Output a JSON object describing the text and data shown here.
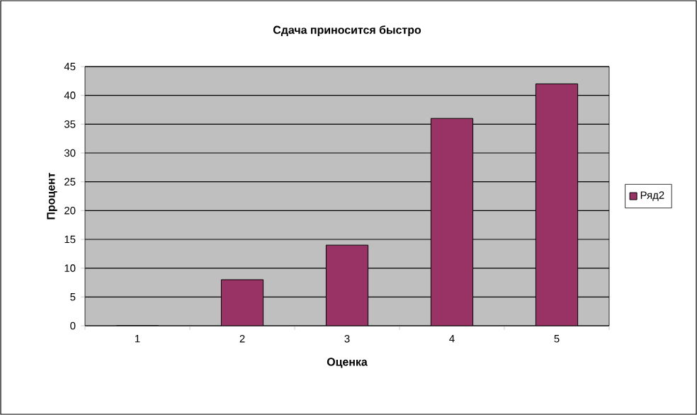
{
  "chart_data": {
    "type": "bar",
    "title": "Сдача приносится быстро",
    "xlabel": "Оценка",
    "ylabel": "Процент",
    "categories": [
      "1",
      "2",
      "3",
      "4",
      "5"
    ],
    "series": [
      {
        "name": "Ряд2",
        "color": "#993366",
        "values": [
          0,
          8,
          14,
          36,
          42
        ]
      }
    ],
    "ylim": [
      0,
      45
    ],
    "yticks": [
      0,
      5,
      10,
      15,
      20,
      25,
      30,
      35,
      40,
      45
    ],
    "grid": "y",
    "legend": "right"
  }
}
